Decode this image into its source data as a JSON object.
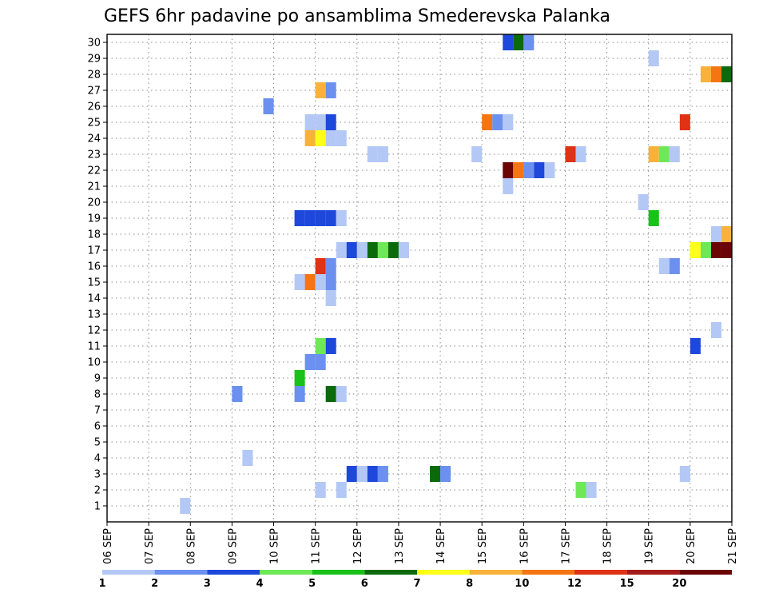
{
  "chart_data": {
    "type": "heatmap",
    "title": "GEFS 6hr padavine po ansamblima Smederevska Palanka",
    "xlabel": "",
    "ylabel": "",
    "x_tick_labels": [
      "06 SEP",
      "07 SEP",
      "08 SEP",
      "09 SEP",
      "10 SEP",
      "11 SEP",
      "12 SEP",
      "13 SEP",
      "14 SEP",
      "15 SEP",
      "16 SEP",
      "17 SEP",
      "18 SEP",
      "19 SEP",
      "20 SEP",
      "21 SEP"
    ],
    "y_tick_labels": [
      "1",
      "2",
      "3",
      "4",
      "5",
      "6",
      "7",
      "8",
      "9",
      "10",
      "11",
      "12",
      "13",
      "14",
      "15",
      "16",
      "17",
      "18",
      "19",
      "20",
      "21",
      "22",
      "23",
      "24",
      "25",
      "26",
      "27",
      "28",
      "29",
      "30"
    ],
    "ylim": [
      0,
      30
    ],
    "x_range_days": [
      0,
      15
    ],
    "time_step_hours": 6,
    "grid": true,
    "legend": {
      "placement": "bottom",
      "breaks": [
        "1",
        "2",
        "3",
        "4",
        "5",
        "6",
        "7",
        "8",
        "10",
        "12",
        "15",
        "20"
      ],
      "colors": [
        "#b3c8f5",
        "#6b90ef",
        "#1e48db",
        "#6ee857",
        "#19c119",
        "#0b6b0b",
        "#ffff18",
        "#f8b23c",
        "#f47512",
        "#e03214",
        "#a51b1b",
        "#6b0505"
      ]
    },
    "cells": [
      {
        "member": 30,
        "step": [
          38,
          39,
          40
        ],
        "class": [
          2,
          5,
          1
        ]
      },
      {
        "member": 29,
        "step": [
          52
        ],
        "class": [
          0
        ]
      },
      {
        "member": 28,
        "step": [
          57,
          58,
          59
        ],
        "class": [
          7,
          8,
          5
        ]
      },
      {
        "member": 27,
        "step": [
          20,
          21
        ],
        "class": [
          7,
          1
        ]
      },
      {
        "member": 26,
        "step": [
          15
        ],
        "class": [
          1
        ]
      },
      {
        "member": 25,
        "step": [
          19,
          20,
          21,
          36,
          37,
          38,
          55
        ],
        "class": [
          0,
          0,
          2,
          8,
          1,
          0,
          9
        ]
      },
      {
        "member": 24,
        "step": [
          19,
          20,
          21,
          22
        ],
        "class": [
          7,
          6,
          0,
          0
        ]
      },
      {
        "member": 23,
        "step": [
          25,
          26,
          35,
          44,
          45,
          52,
          53,
          54
        ],
        "class": [
          0,
          0,
          0,
          9,
          0,
          7,
          3,
          0
        ]
      },
      {
        "member": 22,
        "step": [
          38,
          39,
          40,
          41,
          42
        ],
        "class": [
          11,
          8,
          1,
          2,
          0
        ]
      },
      {
        "member": 21,
        "step": [
          38
        ],
        "class": [
          0
        ]
      },
      {
        "member": 20,
        "step": [
          51
        ],
        "class": [
          0
        ]
      },
      {
        "member": 19,
        "step": [
          18,
          19,
          20,
          21,
          22,
          52
        ],
        "class": [
          2,
          2,
          2,
          2,
          0,
          4
        ]
      },
      {
        "member": 18,
        "step": [
          58,
          59
        ],
        "class": [
          0,
          7
        ]
      },
      {
        "member": 17,
        "step": [
          22,
          23,
          24,
          25,
          26,
          27,
          28,
          56,
          57,
          58,
          59
        ],
        "class": [
          0,
          2,
          0,
          5,
          3,
          5,
          0,
          6,
          3,
          11,
          11
        ]
      },
      {
        "member": 16,
        "step": [
          20,
          21,
          53,
          54
        ],
        "class": [
          9,
          1,
          0,
          1
        ]
      },
      {
        "member": 15,
        "step": [
          18,
          19,
          20,
          21
        ],
        "class": [
          0,
          8,
          0,
          1
        ]
      },
      {
        "member": 14,
        "step": [
          21
        ],
        "class": [
          0
        ]
      },
      {
        "member": 12,
        "step": [
          58
        ],
        "class": [
          0
        ]
      },
      {
        "member": 11,
        "step": [
          20,
          21,
          56
        ],
        "class": [
          3,
          2,
          2
        ]
      },
      {
        "member": 10,
        "step": [
          19,
          20
        ],
        "class": [
          1,
          1
        ]
      },
      {
        "member": 9,
        "step": [
          18
        ],
        "class": [
          4
        ]
      },
      {
        "member": 8,
        "step": [
          12,
          18,
          21,
          22
        ],
        "class": [
          1,
          1,
          5,
          0
        ]
      },
      {
        "member": 4,
        "step": [
          13
        ],
        "class": [
          0
        ]
      },
      {
        "member": 3,
        "step": [
          23,
          24,
          25,
          26,
          31,
          32,
          55
        ],
        "class": [
          2,
          0,
          2,
          1,
          5,
          1,
          0
        ]
      },
      {
        "member": 2,
        "step": [
          20,
          22,
          45,
          46
        ],
        "class": [
          0,
          0,
          3,
          0
        ]
      },
      {
        "member": 1,
        "step": [
          7
        ],
        "class": [
          0
        ]
      }
    ]
  }
}
